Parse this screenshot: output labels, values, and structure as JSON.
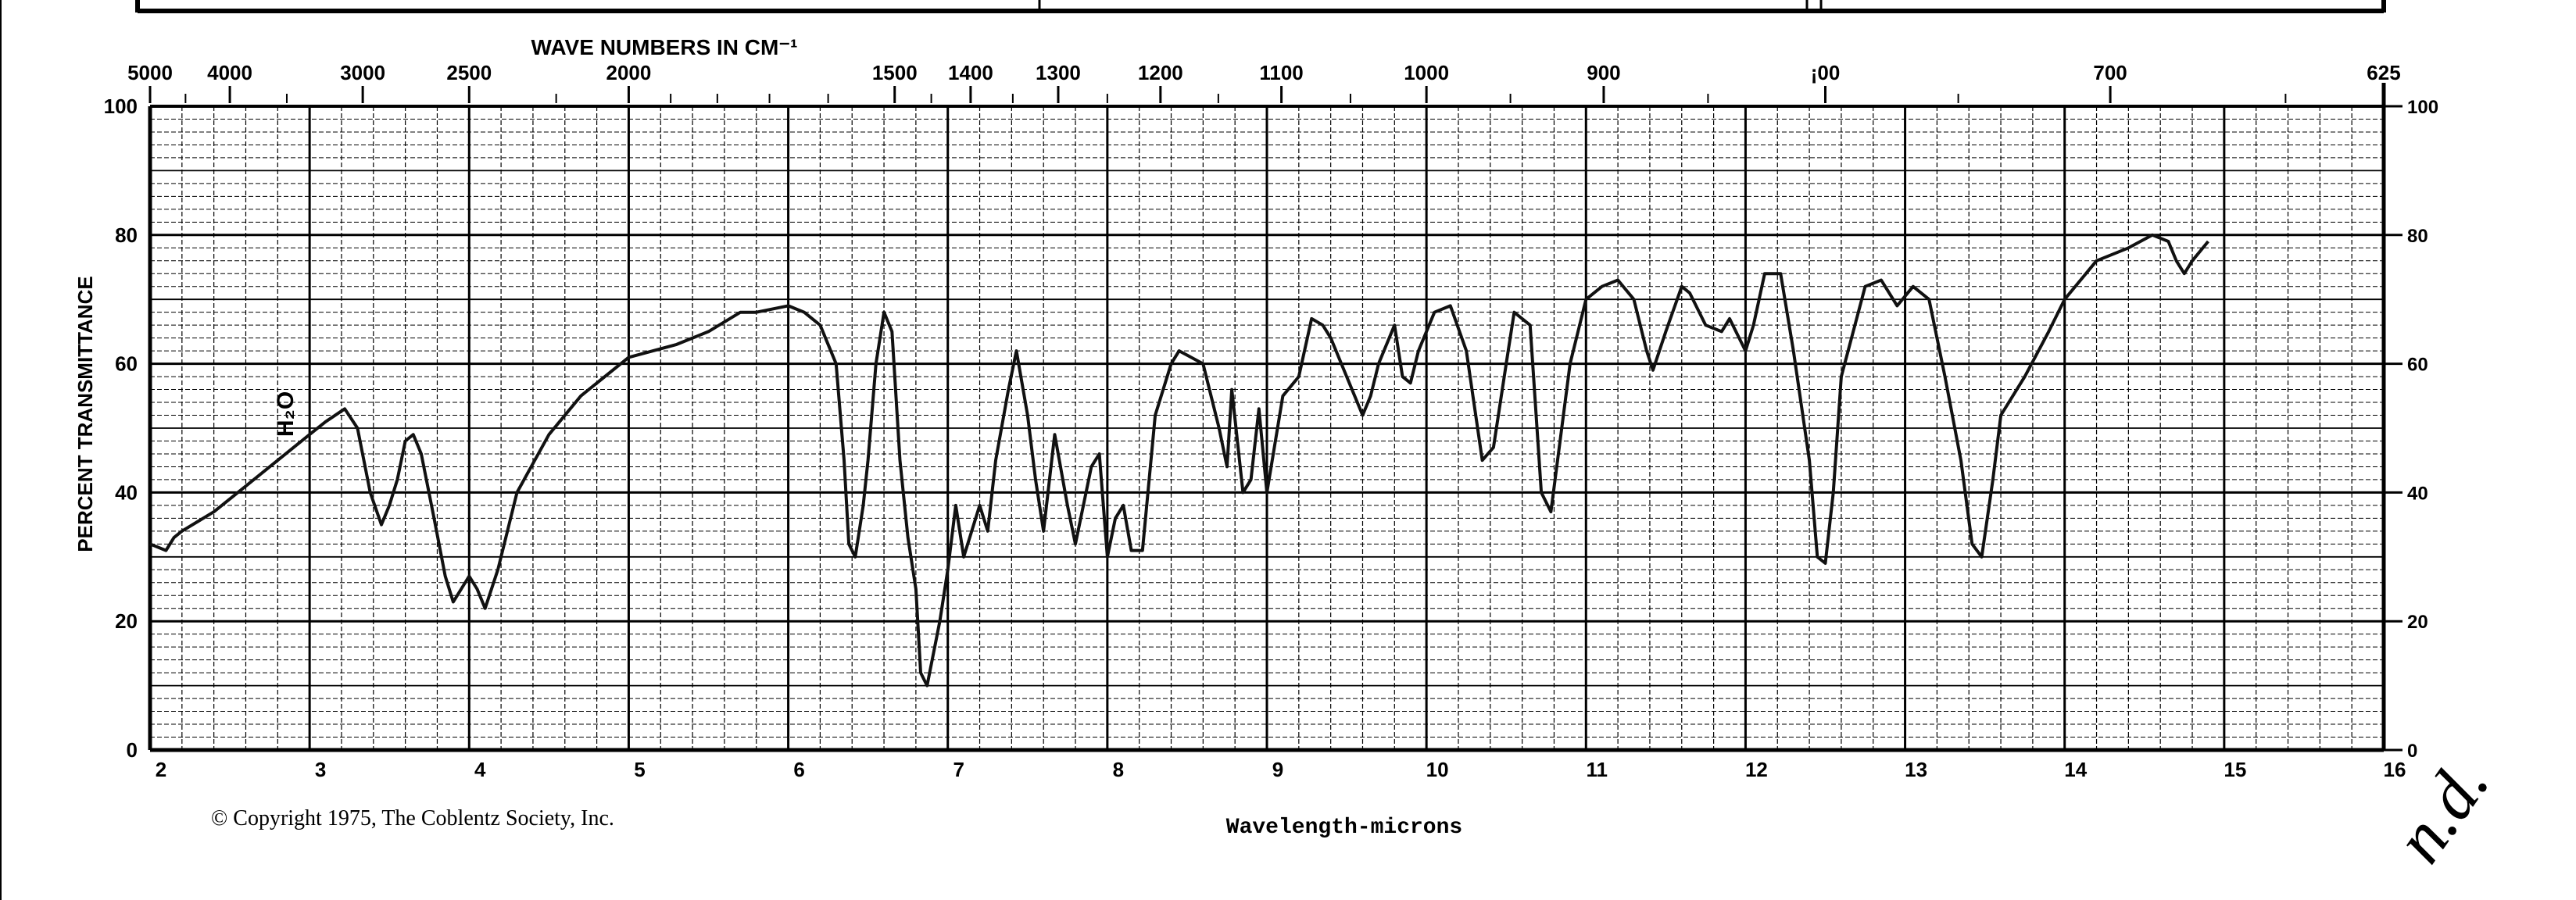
{
  "chart_data": {
    "type": "line",
    "top_axis_title": "WAVE NUMBERS IN CM⁻¹",
    "xlabel": "Wavelength-microns",
    "ylabel": "PERCENT TRANSMITTANCE",
    "xlim": [
      2,
      16
    ],
    "ylim": [
      0,
      100
    ],
    "grid": true,
    "x_ticks": [
      "2",
      "3",
      "4",
      "5",
      "6",
      "7",
      "8",
      "9",
      "10",
      "11",
      "12",
      "13",
      "14",
      "15",
      "16"
    ],
    "y_ticks_left": [
      "0",
      "20",
      "40",
      "60",
      "80",
      "100"
    ],
    "y_ticks_right": [
      "0",
      "20",
      "40",
      "60",
      "80",
      "100"
    ],
    "top_ticks": [
      {
        "label": "5000",
        "x": 2.0
      },
      {
        "label": "4000",
        "x": 2.5
      },
      {
        "label": "3000",
        "x": 3.333
      },
      {
        "label": "2500",
        "x": 4.0
      },
      {
        "label": "2000",
        "x": 5.0
      },
      {
        "label": "1500",
        "x": 6.667
      },
      {
        "label": "1400",
        "x": 7.143
      },
      {
        "label": "1300",
        "x": 7.692
      },
      {
        "label": "1200",
        "x": 8.333
      },
      {
        "label": "1100",
        "x": 9.091
      },
      {
        "label": "1000",
        "x": 10.0
      },
      {
        "label": "900",
        "x": 11.111
      },
      {
        "label": "¡00",
        "x": 12.5
      },
      {
        "label": "700",
        "x": 14.286
      },
      {
        "label": "625",
        "x": 16.0
      }
    ],
    "annotation_h2o": "H₂O",
    "copyright": "© Copyright 1975, The Coblentz Society, Inc.",
    "handwriting": "n.d.",
    "series": [
      {
        "points": [
          [
            2.0,
            32
          ],
          [
            2.1,
            31
          ],
          [
            2.15,
            33
          ],
          [
            2.2,
            34
          ],
          [
            2.4,
            37
          ],
          [
            2.6,
            41
          ],
          [
            2.8,
            45
          ],
          [
            2.9,
            47
          ],
          [
            3.0,
            49
          ],
          [
            3.1,
            51
          ],
          [
            3.22,
            53
          ],
          [
            3.3,
            50
          ],
          [
            3.38,
            40
          ],
          [
            3.45,
            35
          ],
          [
            3.5,
            38
          ],
          [
            3.55,
            42
          ],
          [
            3.6,
            48
          ],
          [
            3.65,
            49
          ],
          [
            3.7,
            46
          ],
          [
            3.78,
            36
          ],
          [
            3.85,
            27
          ],
          [
            3.9,
            23
          ],
          [
            3.95,
            25
          ],
          [
            4.0,
            27
          ],
          [
            4.05,
            25
          ],
          [
            4.1,
            22
          ],
          [
            4.18,
            28
          ],
          [
            4.3,
            40
          ],
          [
            4.5,
            49
          ],
          [
            4.7,
            55
          ],
          [
            5.0,
            61
          ],
          [
            5.3,
            63
          ],
          [
            5.5,
            65
          ],
          [
            5.7,
            68
          ],
          [
            5.8,
            68
          ],
          [
            6.0,
            69
          ],
          [
            6.1,
            68
          ],
          [
            6.2,
            66
          ],
          [
            6.3,
            60
          ],
          [
            6.35,
            45
          ],
          [
            6.38,
            32
          ],
          [
            6.42,
            30
          ],
          [
            6.47,
            38
          ],
          [
            6.5,
            45
          ],
          [
            6.55,
            60
          ],
          [
            6.6,
            68
          ],
          [
            6.65,
            65
          ],
          [
            6.7,
            45
          ],
          [
            6.75,
            33
          ],
          [
            6.8,
            25
          ],
          [
            6.83,
            12
          ],
          [
            6.87,
            10
          ],
          [
            6.95,
            20
          ],
          [
            7.0,
            28
          ],
          [
            7.05,
            38
          ],
          [
            7.1,
            30
          ],
          [
            7.2,
            38
          ],
          [
            7.25,
            34
          ],
          [
            7.3,
            45
          ],
          [
            7.38,
            56
          ],
          [
            7.43,
            62
          ],
          [
            7.5,
            52
          ],
          [
            7.55,
            42
          ],
          [
            7.6,
            34
          ],
          [
            7.67,
            49
          ],
          [
            7.75,
            38
          ],
          [
            7.8,
            32
          ],
          [
            7.9,
            44
          ],
          [
            7.95,
            46
          ],
          [
            8.0,
            30
          ],
          [
            8.05,
            36
          ],
          [
            8.1,
            38
          ],
          [
            8.15,
            31
          ],
          [
            8.22,
            31
          ],
          [
            8.3,
            52
          ],
          [
            8.4,
            60
          ],
          [
            8.45,
            62
          ],
          [
            8.6,
            60
          ],
          [
            8.7,
            50
          ],
          [
            8.75,
            44
          ],
          [
            8.78,
            56
          ],
          [
            8.85,
            40
          ],
          [
            8.9,
            42
          ],
          [
            8.95,
            53
          ],
          [
            9.0,
            40
          ],
          [
            9.1,
            55
          ],
          [
            9.2,
            58
          ],
          [
            9.28,
            67
          ],
          [
            9.35,
            66
          ],
          [
            9.4,
            64
          ],
          [
            9.5,
            58
          ],
          [
            9.55,
            55
          ],
          [
            9.6,
            52
          ],
          [
            9.65,
            55
          ],
          [
            9.7,
            60
          ],
          [
            9.8,
            66
          ],
          [
            9.85,
            58
          ],
          [
            9.9,
            57
          ],
          [
            9.95,
            62
          ],
          [
            10.05,
            68
          ],
          [
            10.15,
            69
          ],
          [
            10.25,
            62
          ],
          [
            10.35,
            45
          ],
          [
            10.42,
            47
          ],
          [
            10.5,
            60
          ],
          [
            10.55,
            68
          ],
          [
            10.65,
            66
          ],
          [
            10.72,
            40
          ],
          [
            10.78,
            37
          ],
          [
            10.9,
            60
          ],
          [
            11.0,
            70
          ],
          [
            11.1,
            72
          ],
          [
            11.2,
            73
          ],
          [
            11.3,
            70
          ],
          [
            11.38,
            62
          ],
          [
            11.42,
            59
          ],
          [
            11.5,
            65
          ],
          [
            11.6,
            72
          ],
          [
            11.65,
            71
          ],
          [
            11.75,
            66
          ],
          [
            11.85,
            65
          ],
          [
            11.9,
            67
          ],
          [
            12.0,
            62
          ],
          [
            12.05,
            66
          ],
          [
            12.12,
            74
          ],
          [
            12.22,
            74
          ],
          [
            12.3,
            62
          ],
          [
            12.4,
            45
          ],
          [
            12.45,
            30
          ],
          [
            12.5,
            29
          ],
          [
            12.55,
            40
          ],
          [
            12.6,
            58
          ],
          [
            12.75,
            72
          ],
          [
            12.85,
            73
          ],
          [
            12.95,
            69
          ],
          [
            13.05,
            72
          ],
          [
            13.15,
            70
          ],
          [
            13.25,
            58
          ],
          [
            13.35,
            45
          ],
          [
            13.42,
            32
          ],
          [
            13.48,
            30
          ],
          [
            13.55,
            42
          ],
          [
            13.6,
            52
          ],
          [
            13.75,
            58
          ],
          [
            13.9,
            65
          ],
          [
            14.0,
            70
          ],
          [
            14.2,
            76
          ],
          [
            14.4,
            78
          ],
          [
            14.55,
            80
          ],
          [
            14.65,
            79
          ],
          [
            14.7,
            76
          ],
          [
            14.75,
            74
          ],
          [
            14.8,
            76
          ],
          [
            14.9,
            79
          ]
        ]
      }
    ]
  }
}
